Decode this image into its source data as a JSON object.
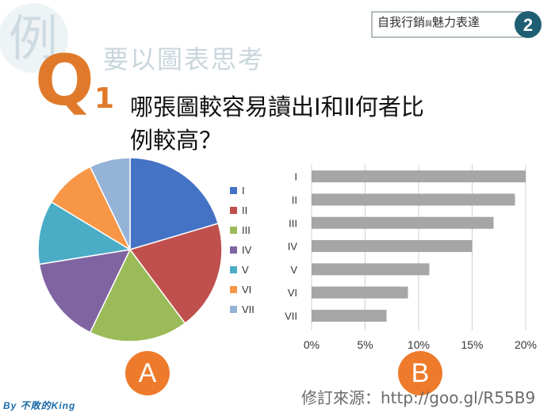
{
  "brand": {
    "title_part1": "自我行銷",
    "title_small": "與",
    "title_part2": "魅力表達",
    "number": "2"
  },
  "badge": {
    "char": "例"
  },
  "subtitle": "要以圖表思考",
  "question": {
    "letter": "Q",
    "number": "1",
    "text_line1": "哪張圖較容易讀出Ⅰ和Ⅱ何者比",
    "text_line2": "例較高？"
  },
  "labels": {
    "a": "A",
    "b": "B"
  },
  "source": "修訂來源：http://goo.gl/R55B9",
  "watermark": "By 不敗的King",
  "colors": {
    "accent": "#ee7a2b",
    "bar": "#a6a6a6"
  },
  "chart_data": [
    {
      "type": "pie",
      "categories": [
        "I",
        "II",
        "III",
        "IV",
        "V",
        "VI",
        "VII"
      ],
      "values": [
        20,
        19,
        17,
        15,
        11,
        9,
        7
      ],
      "colors": [
        "#4472c4",
        "#c0504d",
        "#9bbb59",
        "#8064a2",
        "#4bacc6",
        "#f79646",
        "#95b3d7"
      ],
      "legend": "right"
    },
    {
      "type": "bar",
      "orientation": "horizontal",
      "categories": [
        "I",
        "II",
        "III",
        "IV",
        "V",
        "VI",
        "VII"
      ],
      "values": [
        20,
        19,
        17,
        15,
        11,
        9,
        7
      ],
      "xlim": [
        0,
        20
      ],
      "xticks": [
        "0%",
        "5%",
        "10%",
        "15%",
        "20%"
      ]
    }
  ]
}
